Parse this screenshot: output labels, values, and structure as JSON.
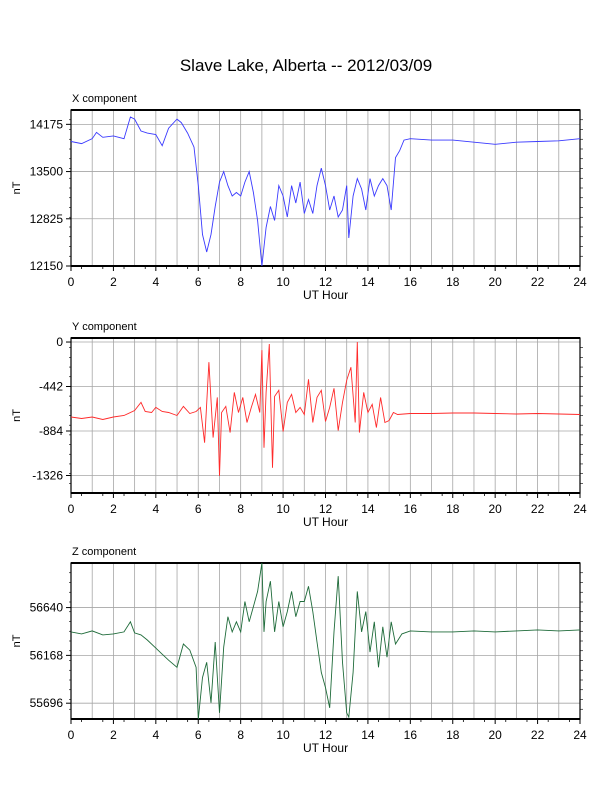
{
  "title": "Slave Lake, Alberta -- 2012/03/09",
  "chart_data": [
    {
      "type": "line",
      "title": "X component",
      "xlabel": "UT Hour",
      "ylabel": "nT",
      "xlim": [
        0,
        24
      ],
      "ylim": [
        12150,
        14380
      ],
      "xticks": [
        "0",
        "2",
        "4",
        "6",
        "8",
        "10",
        "12",
        "14",
        "16",
        "18",
        "20",
        "22",
        "24"
      ],
      "yticks": [
        {
          "v": 12150,
          "label": "12150"
        },
        {
          "v": 12825,
          "label": "12825"
        },
        {
          "v": 13500,
          "label": "13500"
        },
        {
          "v": 14175,
          "label": "14175"
        }
      ],
      "grid": true,
      "color": "#3a3aff",
      "x": [
        0,
        0.5,
        1,
        1.2,
        1.5,
        2,
        2.5,
        2.8,
        3,
        3.3,
        3.6,
        4,
        4.3,
        4.6,
        5,
        5.2,
        5.5,
        5.8,
        6,
        6.2,
        6.4,
        6.6,
        6.8,
        7,
        7.2,
        7.4,
        7.6,
        7.8,
        8,
        8.2,
        8.4,
        8.6,
        8.8,
        9,
        9.2,
        9.4,
        9.6,
        9.8,
        10,
        10.2,
        10.4,
        10.6,
        10.8,
        11,
        11.2,
        11.4,
        11.6,
        11.8,
        12,
        12.2,
        12.4,
        12.6,
        12.8,
        13,
        13.1,
        13.3,
        13.5,
        13.7,
        13.9,
        14.1,
        14.3,
        14.5,
        14.7,
        14.9,
        15.1,
        15.3,
        15.5,
        15.7,
        16,
        17,
        18,
        19,
        20,
        21,
        22,
        23,
        24
      ],
      "y": [
        13930,
        13900,
        13970,
        14060,
        13990,
        14010,
        13970,
        14280,
        14250,
        14080,
        14050,
        14030,
        13870,
        14120,
        14250,
        14200,
        14050,
        13850,
        13300,
        12600,
        12350,
        12600,
        13000,
        13350,
        13500,
        13300,
        13150,
        13200,
        13150,
        13350,
        13500,
        13200,
        12800,
        12150,
        12700,
        13000,
        12800,
        13300,
        13150,
        12850,
        13300,
        13050,
        13350,
        12900,
        13100,
        12900,
        13300,
        13550,
        13300,
        12950,
        13150,
        12850,
        12950,
        13300,
        12550,
        13150,
        13400,
        13250,
        12950,
        13400,
        13150,
        13300,
        13400,
        13300,
        12950,
        13700,
        13800,
        13950,
        13970,
        13950,
        13950,
        13920,
        13890,
        13920,
        13930,
        13940,
        13970
      ]
    },
    {
      "type": "line",
      "title": "Y component",
      "xlabel": "UT Hour",
      "ylabel": "nT",
      "xlim": [
        0,
        24
      ],
      "ylim": [
        -1500,
        40
      ],
      "xticks": [
        "0",
        "2",
        "4",
        "6",
        "8",
        "10",
        "12",
        "14",
        "16",
        "18",
        "20",
        "22",
        "24"
      ],
      "yticks": [
        {
          "v": -1326,
          "label": "-1326"
        },
        {
          "v": -884,
          "label": "-884"
        },
        {
          "v": -442,
          "label": "-442"
        },
        {
          "v": 0,
          "label": "0"
        }
      ],
      "grid": true,
      "color": "#ff2a2a",
      "x": [
        0,
        0.5,
        1,
        1.5,
        2,
        2.5,
        3,
        3.3,
        3.5,
        3.8,
        4,
        4.3,
        4.6,
        5,
        5.3,
        5.6,
        5.9,
        6.1,
        6.3,
        6.5,
        6.7,
        6.9,
        7,
        7.1,
        7.3,
        7.5,
        7.7,
        7.9,
        8.1,
        8.3,
        8.5,
        8.7,
        8.9,
        9,
        9.1,
        9.2,
        9.35,
        9.5,
        9.6,
        9.8,
        10,
        10.2,
        10.4,
        10.6,
        10.8,
        11,
        11.2,
        11.4,
        11.6,
        11.8,
        12,
        12.2,
        12.4,
        12.6,
        12.8,
        13,
        13.2,
        13.4,
        13.5,
        13.6,
        13.8,
        14,
        14.2,
        14.4,
        14.6,
        14.8,
        15,
        15.2,
        15.4,
        16,
        17,
        18,
        19,
        20,
        21,
        22,
        23,
        24
      ],
      "y": [
        -745,
        -760,
        -745,
        -770,
        -745,
        -730,
        -680,
        -600,
        -690,
        -700,
        -650,
        -690,
        -700,
        -730,
        -640,
        -710,
        -690,
        -650,
        -1000,
        -200,
        -950,
        -550,
        -1330,
        -700,
        -640,
        -900,
        -500,
        -700,
        -550,
        -800,
        -650,
        -520,
        -700,
        -80,
        -1050,
        -500,
        -20,
        -1250,
        -540,
        -480,
        -890,
        -600,
        -520,
        -700,
        -650,
        -720,
        -370,
        -800,
        -550,
        -480,
        -790,
        -650,
        -460,
        -880,
        -600,
        -380,
        -250,
        -800,
        0,
        -900,
        -500,
        -700,
        -620,
        -850,
        -550,
        -800,
        -780,
        -700,
        -720,
        -710,
        -710,
        -705,
        -705,
        -710,
        -715,
        -710,
        -715,
        -720
      ]
    },
    {
      "type": "line",
      "title": "Z component",
      "xlabel": "UT Hour",
      "ylabel": "nT",
      "xlim": [
        0,
        24
      ],
      "ylim": [
        55540,
        57080
      ],
      "xticks": [
        "0",
        "2",
        "4",
        "6",
        "8",
        "10",
        "12",
        "14",
        "16",
        "18",
        "20",
        "22",
        "24"
      ],
      "yticks": [
        {
          "v": 55696,
          "label": "55696"
        },
        {
          "v": 56168,
          "label": "56168"
        },
        {
          "v": 56640,
          "label": "56640"
        }
      ],
      "grid": true,
      "color": "#1f6b3a",
      "x": [
        0,
        0.5,
        1,
        1.5,
        2,
        2.5,
        2.8,
        3,
        3.3,
        3.6,
        4,
        4.3,
        4.6,
        5,
        5.3,
        5.6,
        5.9,
        6,
        6.2,
        6.4,
        6.6,
        6.8,
        7,
        7.2,
        7.4,
        7.6,
        7.8,
        8,
        8.2,
        8.4,
        8.6,
        8.8,
        9,
        9.1,
        9.2,
        9.4,
        9.6,
        9.8,
        10,
        10.2,
        10.4,
        10.6,
        10.8,
        11,
        11.2,
        11.4,
        11.6,
        11.8,
        12,
        12.2,
        12.4,
        12.6,
        12.8,
        13,
        13.1,
        13.3,
        13.5,
        13.7,
        13.9,
        14.1,
        14.3,
        14.5,
        14.7,
        14.9,
        15.1,
        15.3,
        15.6,
        16,
        17,
        18,
        19,
        20,
        21,
        22,
        23,
        24
      ],
      "y": [
        56400,
        56380,
        56410,
        56370,
        56380,
        56400,
        56500,
        56390,
        56370,
        56320,
        56240,
        56180,
        56120,
        56050,
        56280,
        56220,
        56050,
        55540,
        55950,
        56100,
        55700,
        56300,
        55600,
        56250,
        56550,
        56400,
        56500,
        56400,
        56700,
        56500,
        56650,
        56800,
        57080,
        56400,
        56700,
        56900,
        56400,
        56700,
        56450,
        56600,
        56800,
        56550,
        56700,
        56700,
        56850,
        56600,
        56300,
        56000,
        55850,
        55650,
        56400,
        56950,
        56100,
        55600,
        55560,
        56000,
        56800,
        56400,
        56600,
        56200,
        56500,
        56050,
        56450,
        56150,
        56500,
        56280,
        56380,
        56410,
        56400,
        56400,
        56410,
        56400,
        56410,
        56420,
        56410,
        56420
      ]
    }
  ]
}
